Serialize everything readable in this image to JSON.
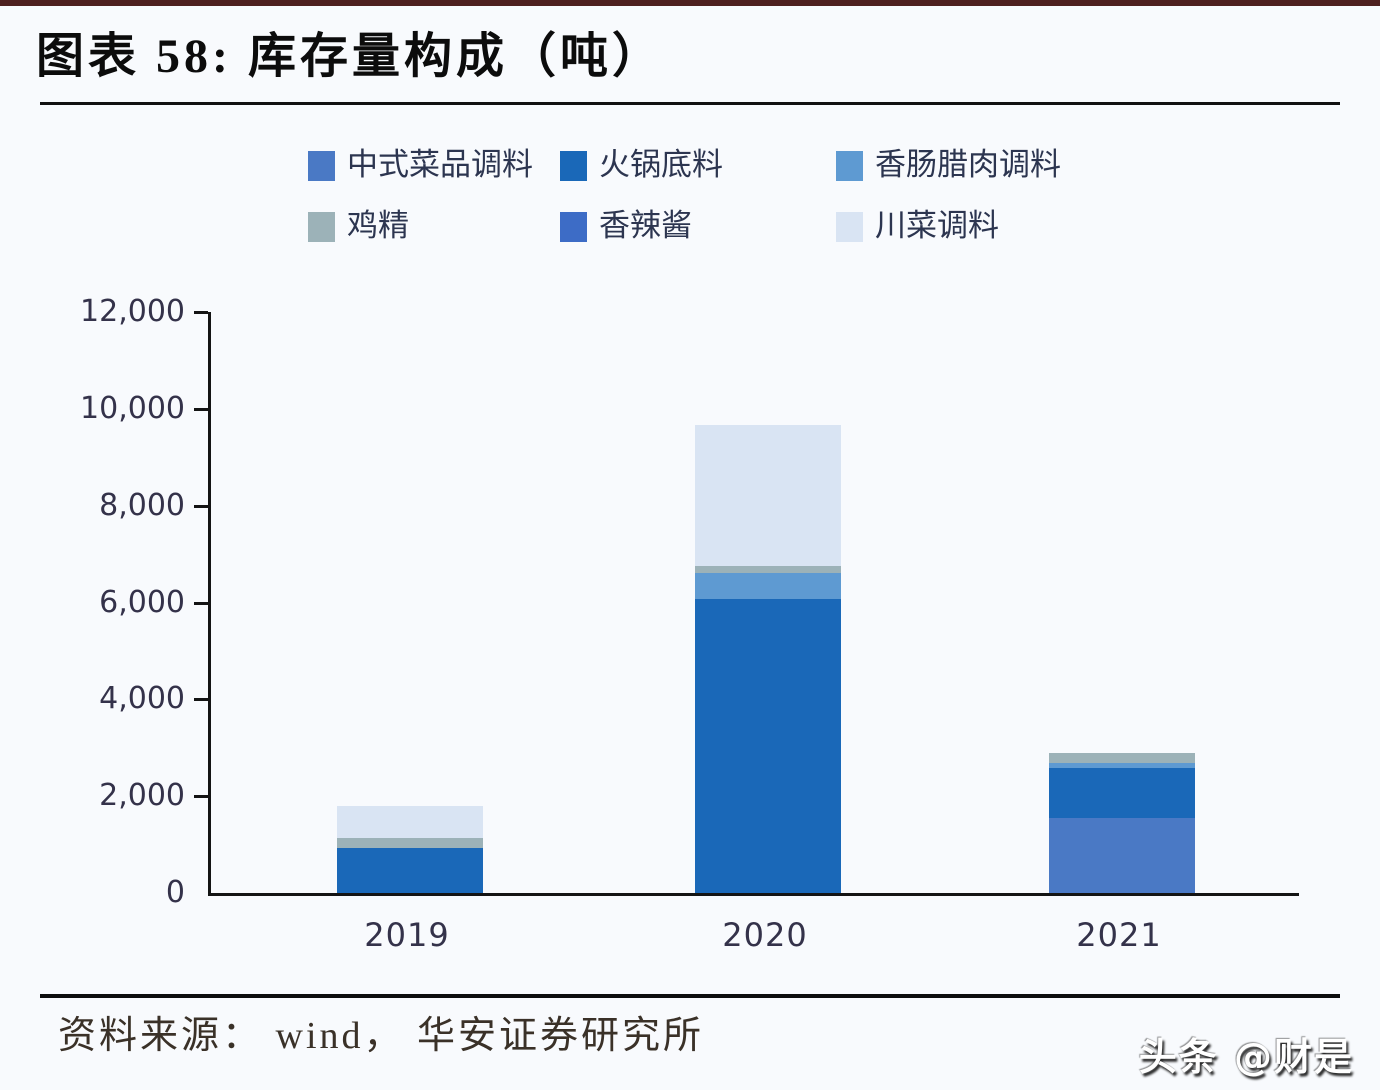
{
  "header": {
    "title": "图表 58:  库存量构成（吨）"
  },
  "chart_data": {
    "type": "bar",
    "stacked": true,
    "title": "库存量构成（吨）",
    "categories": [
      "2019",
      "2020",
      "2021"
    ],
    "series": [
      {
        "name": "中式菜品调料",
        "color": "#4a79c5",
        "values": [
          0,
          0,
          1550
        ]
      },
      {
        "name": "火锅底料",
        "color": "#1a68b8",
        "values": [
          930,
          6080,
          1040
        ]
      },
      {
        "name": "香肠腊肉调料",
        "color": "#5e9ad2",
        "values": [
          0,
          520,
          100
        ]
      },
      {
        "name": "鸡精",
        "color": "#9cb2b8",
        "values": [
          200,
          160,
          200
        ]
      },
      {
        "name": "香辣酱",
        "color": "#3d6cc6",
        "values": [
          0,
          0,
          0
        ]
      },
      {
        "name": "川菜调料",
        "color": "#d9e4f3",
        "values": [
          660,
          2900,
          0
        ]
      }
    ],
    "totals": [
      1790,
      9660,
      2890
    ],
    "ylim": [
      0,
      12000
    ],
    "ytick_step": 2000,
    "ytick_labels": [
      "0",
      "2,000",
      "4,000",
      "6,000",
      "8,000",
      "10,000",
      "12,000"
    ],
    "legend_position": "top",
    "grid": false,
    "axis_color": "#141414"
  },
  "footer": {
    "source": "资料来源： wind， 华安证券研究所"
  },
  "watermark": {
    "text": "头条 @财是"
  }
}
